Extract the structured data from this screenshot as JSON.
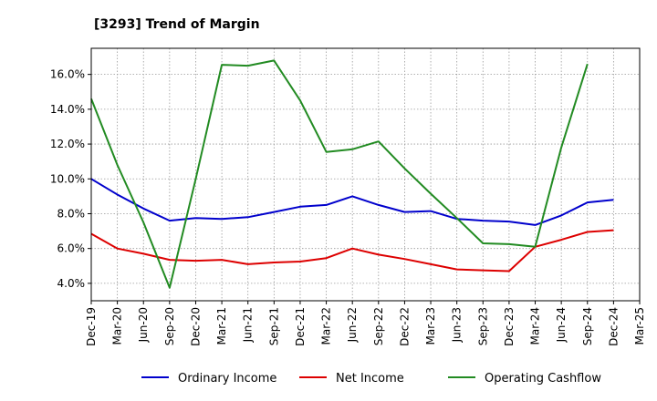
{
  "chart_data": {
    "type": "line",
    "title": "[3293]  Trend of Margin",
    "xlabel": "",
    "ylabel": "",
    "x": [
      "Dec-19",
      "Mar-20",
      "Jun-20",
      "Sep-20",
      "Dec-20",
      "Mar-21",
      "Jun-21",
      "Sep-21",
      "Dec-21",
      "Mar-22",
      "Jun-22",
      "Sep-22",
      "Dec-22",
      "Mar-23",
      "Jun-23",
      "Sep-23",
      "Dec-23",
      "Mar-24",
      "Jun-24",
      "Sep-24",
      "Dec-24",
      "Mar-25"
    ],
    "ylim": [
      3.0,
      17.5
    ],
    "yticks": [
      4.0,
      6.0,
      8.0,
      10.0,
      12.0,
      14.0,
      16.0
    ],
    "ytick_labels": [
      "4.0%",
      "6.0%",
      "8.0%",
      "10.0%",
      "12.0%",
      "14.0%",
      "16.0%"
    ],
    "grid": true,
    "legend_position": "bottom",
    "series": [
      {
        "name": "Ordinary Income",
        "color": "#0000cc",
        "values": [
          10.0,
          9.1,
          8.3,
          7.6,
          7.75,
          7.7,
          7.8,
          8.1,
          8.4,
          8.5,
          9.0,
          8.5,
          8.1,
          8.15,
          7.7,
          7.6,
          7.55,
          7.35,
          7.9,
          8.65,
          8.8,
          null
        ]
      },
      {
        "name": "Net Income",
        "color": "#dd0000",
        "values": [
          6.85,
          6.0,
          5.7,
          5.35,
          5.3,
          5.35,
          5.1,
          5.2,
          5.25,
          5.45,
          6.0,
          5.65,
          5.4,
          5.1,
          4.8,
          4.75,
          4.7,
          6.1,
          6.5,
          6.95,
          7.05,
          null
        ]
      },
      {
        "name": "Operating Cashflow",
        "color": "#228b22",
        "values": [
          14.6,
          10.8,
          7.5,
          3.75,
          10.0,
          16.55,
          16.5,
          16.8,
          14.5,
          11.55,
          11.7,
          12.15,
          10.6,
          9.15,
          7.75,
          6.3,
          6.25,
          6.1,
          11.8,
          16.6,
          null,
          null
        ]
      }
    ]
  }
}
